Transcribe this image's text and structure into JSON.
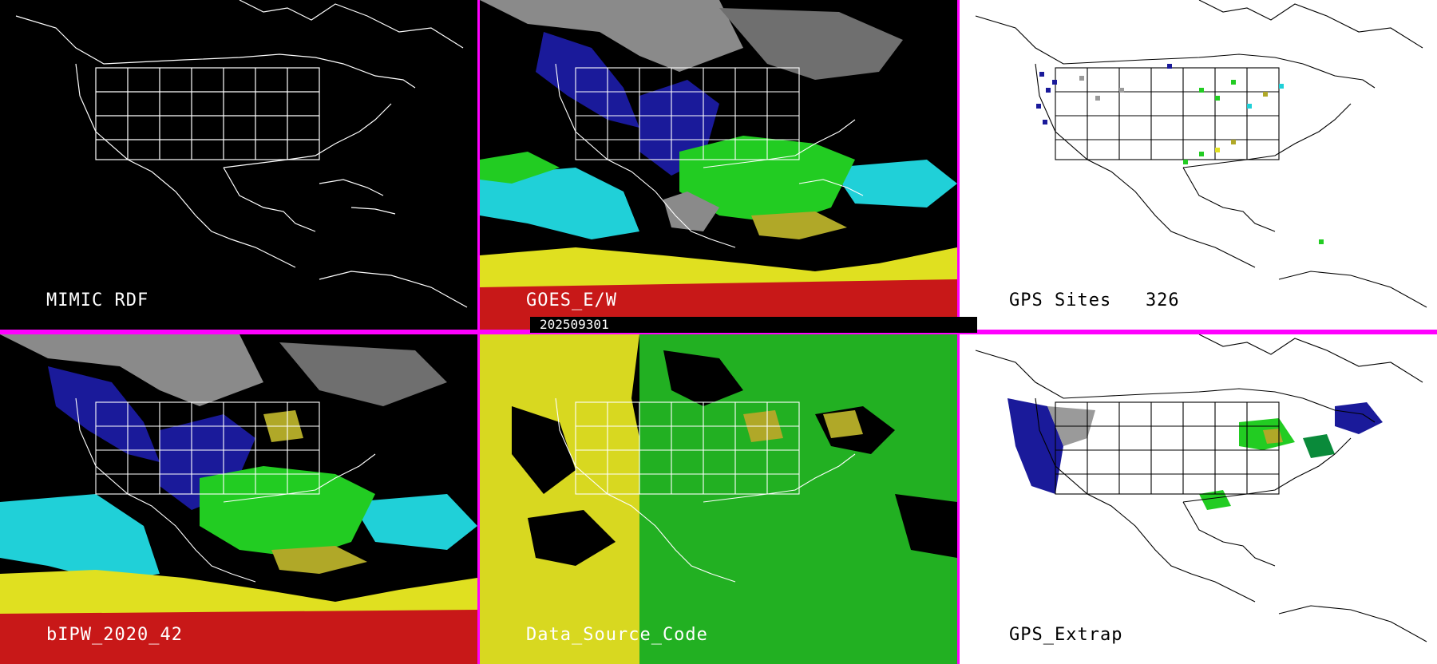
{
  "timestamp": "202509301",
  "panels": {
    "mimic_rdf": {
      "label": "MIMIC RDF"
    },
    "goes_ew": {
      "label": "GOES_E/W"
    },
    "gps_sites": {
      "label": "GPS Sites   326"
    },
    "bipw": {
      "label": "bIPW_2020_42"
    },
    "data_source": {
      "label": "Data_Source_Code"
    },
    "gps_extrap": {
      "label": "GPS_Extrap"
    }
  },
  "colors": {
    "frame": "#ff00ff",
    "map_dark_bg": "#000000",
    "map_light_bg": "#ffffff",
    "pw_low": "#1a1a9a",
    "pw_midlow": "#20d0d8",
    "pw_mid": "#22cc22",
    "pw_midhigh": "#b0a828",
    "pw_high": "#e0e020",
    "pw_max": "#c81818",
    "cloud": "#9a9a9a",
    "source_a": "#d8d820",
    "source_b": "#22b022"
  }
}
